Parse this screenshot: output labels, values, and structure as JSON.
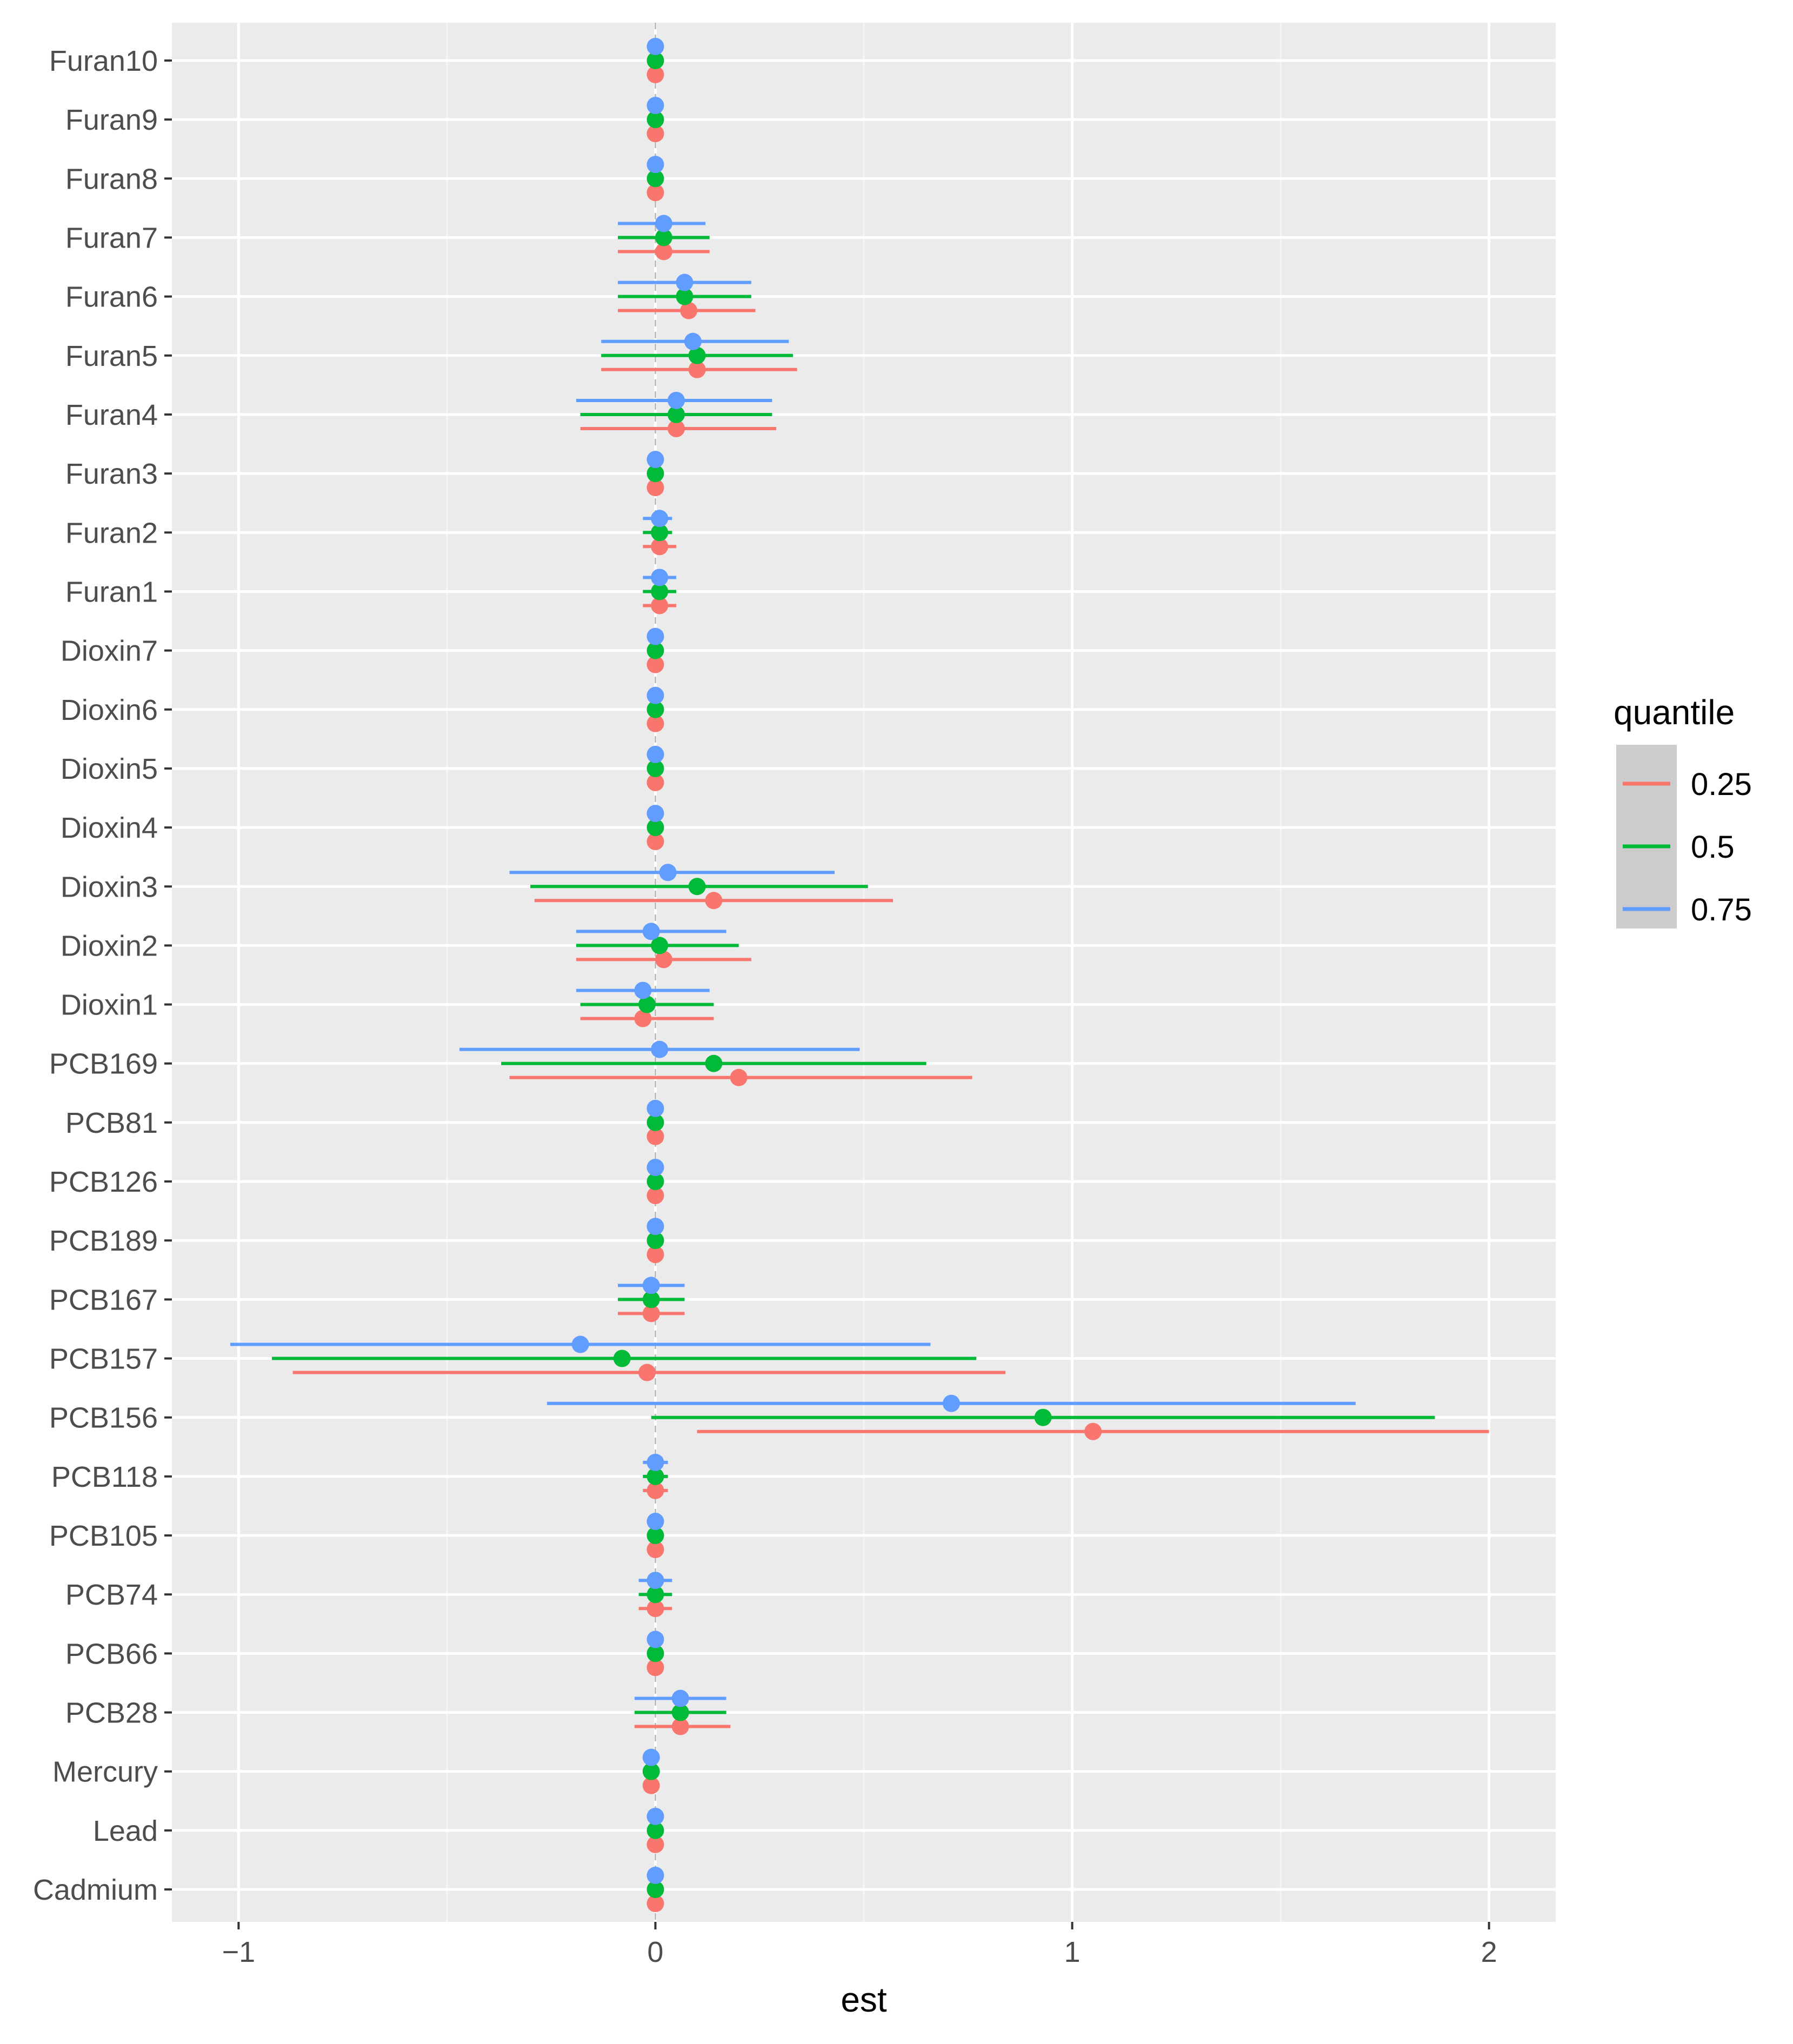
{
  "chart_data": {
    "type": "forest",
    "xlabel": "est",
    "ylabel": "",
    "xlim": [
      -1.16,
      2.16
    ],
    "x_ticks": [
      -1,
      0,
      1,
      2
    ],
    "x_tick_labels": [
      "−1",
      "0",
      "1",
      "2"
    ],
    "reference_line": 0,
    "grid": true,
    "legend": {
      "title": "quantile",
      "position": "right",
      "entries": [
        "0.25",
        "0.5",
        "0.75"
      ]
    },
    "series": [
      {
        "name": "0.25",
        "color": "#f8766d"
      },
      {
        "name": "0.5",
        "color": "#00ba38"
      },
      {
        "name": "0.75",
        "color": "#619cff"
      }
    ],
    "categories": [
      "Furan10",
      "Furan9",
      "Furan8",
      "Furan7",
      "Furan6",
      "Furan5",
      "Furan4",
      "Furan3",
      "Furan2",
      "Furan1",
      "Dioxin7",
      "Dioxin6",
      "Dioxin5",
      "Dioxin4",
      "Dioxin3",
      "Dioxin2",
      "Dioxin1",
      "PCB169",
      "PCB81",
      "PCB126",
      "PCB189",
      "PCB167",
      "PCB157",
      "PCB156",
      "PCB118",
      "PCB105",
      "PCB74",
      "PCB66",
      "PCB28",
      "Mercury",
      "Lead",
      "Cadmium"
    ],
    "estimates": {
      "0.25": [
        [
          0.0,
          0.0,
          0.0
        ],
        [
          0.0,
          0.0,
          0.0
        ],
        [
          0.0,
          0.0,
          0.0
        ],
        [
          0.02,
          -0.09,
          0.13
        ],
        [
          0.08,
          -0.09,
          0.24
        ],
        [
          0.1,
          -0.13,
          0.34
        ],
        [
          0.05,
          -0.18,
          0.29
        ],
        [
          0.0,
          0.0,
          0.0
        ],
        [
          0.01,
          -0.03,
          0.05
        ],
        [
          0.01,
          -0.03,
          0.05
        ],
        [
          0.0,
          0.0,
          0.0
        ],
        [
          0.0,
          0.0,
          0.0
        ],
        [
          0.0,
          0.0,
          0.0
        ],
        [
          0.0,
          0.0,
          0.0
        ],
        [
          0.14,
          -0.29,
          0.57
        ],
        [
          0.02,
          -0.19,
          0.23
        ],
        [
          -0.03,
          -0.18,
          0.14
        ],
        [
          0.2,
          -0.35,
          0.76
        ],
        [
          0.0,
          0.0,
          0.0
        ],
        [
          0.0,
          0.0,
          0.0
        ],
        [
          0.0,
          0.0,
          0.0
        ],
        [
          -0.01,
          -0.09,
          0.07
        ],
        [
          -0.02,
          -0.87,
          0.84
        ],
        [
          1.05,
          0.1,
          2.0
        ],
        [
          0.0,
          -0.03,
          0.03
        ],
        [
          0.0,
          0.0,
          0.0
        ],
        [
          0.0,
          -0.04,
          0.04
        ],
        [
          0.0,
          0.0,
          0.0
        ],
        [
          0.06,
          -0.05,
          0.18
        ],
        [
          -0.01,
          -0.03,
          0.01
        ],
        [
          0.0,
          0.0,
          0.0
        ],
        [
          0.0,
          0.0,
          0.0
        ]
      ],
      "0.5": [
        [
          0.0,
          0.0,
          0.0
        ],
        [
          0.0,
          0.0,
          0.0
        ],
        [
          0.0,
          0.0,
          0.0
        ],
        [
          0.02,
          -0.09,
          0.13
        ],
        [
          0.07,
          -0.09,
          0.23
        ],
        [
          0.1,
          -0.13,
          0.33
        ],
        [
          0.05,
          -0.18,
          0.28
        ],
        [
          0.0,
          0.0,
          0.0
        ],
        [
          0.01,
          -0.03,
          0.04
        ],
        [
          0.01,
          -0.03,
          0.05
        ],
        [
          0.0,
          0.0,
          0.0
        ],
        [
          0.0,
          0.0,
          0.0
        ],
        [
          0.0,
          0.0,
          0.0
        ],
        [
          0.0,
          0.0,
          0.0
        ],
        [
          0.1,
          -0.3,
          0.51
        ],
        [
          0.01,
          -0.19,
          0.2
        ],
        [
          -0.02,
          -0.18,
          0.14
        ],
        [
          0.14,
          -0.37,
          0.65
        ],
        [
          0.0,
          0.0,
          0.0
        ],
        [
          0.0,
          0.0,
          0.0
        ],
        [
          0.0,
          0.0,
          0.0
        ],
        [
          -0.01,
          -0.09,
          0.07
        ],
        [
          -0.08,
          -0.92,
          0.77
        ],
        [
          0.93,
          -0.01,
          1.87
        ],
        [
          0.0,
          -0.03,
          0.03
        ],
        [
          0.0,
          0.0,
          0.0
        ],
        [
          0.0,
          -0.04,
          0.04
        ],
        [
          0.0,
          0.0,
          0.0
        ],
        [
          0.06,
          -0.05,
          0.17
        ],
        [
          -0.01,
          -0.03,
          0.01
        ],
        [
          0.0,
          0.0,
          0.0
        ],
        [
          0.0,
          0.0,
          0.0
        ]
      ],
      "0.75": [
        [
          0.0,
          0.0,
          0.0
        ],
        [
          0.0,
          0.0,
          0.0
        ],
        [
          0.0,
          0.0,
          0.0
        ],
        [
          0.02,
          -0.09,
          0.12
        ],
        [
          0.07,
          -0.09,
          0.23
        ],
        [
          0.09,
          -0.13,
          0.32
        ],
        [
          0.05,
          -0.19,
          0.28
        ],
        [
          0.0,
          0.0,
          0.0
        ],
        [
          0.01,
          -0.03,
          0.04
        ],
        [
          0.01,
          -0.03,
          0.05
        ],
        [
          0.0,
          0.0,
          0.0
        ],
        [
          0.0,
          0.0,
          0.0
        ],
        [
          0.0,
          0.0,
          0.0
        ],
        [
          0.0,
          0.0,
          0.0
        ],
        [
          0.03,
          -0.35,
          0.43
        ],
        [
          -0.01,
          -0.19,
          0.17
        ],
        [
          -0.03,
          -0.19,
          0.13
        ],
        [
          0.01,
          -0.47,
          0.49
        ],
        [
          0.0,
          0.0,
          0.0
        ],
        [
          0.0,
          0.0,
          0.0
        ],
        [
          0.0,
          0.0,
          0.0
        ],
        [
          -0.01,
          -0.09,
          0.07
        ],
        [
          -0.18,
          -1.02,
          0.66
        ],
        [
          0.71,
          -0.26,
          1.68
        ],
        [
          0.0,
          -0.03,
          0.03
        ],
        [
          0.0,
          0.0,
          0.0
        ],
        [
          0.0,
          -0.04,
          0.04
        ],
        [
          0.0,
          0.0,
          0.0
        ],
        [
          0.06,
          -0.05,
          0.17
        ],
        [
          -0.01,
          -0.03,
          0.01
        ],
        [
          0.0,
          0.0,
          0.0
        ],
        [
          0.0,
          0.0,
          0.0
        ]
      ]
    }
  }
}
